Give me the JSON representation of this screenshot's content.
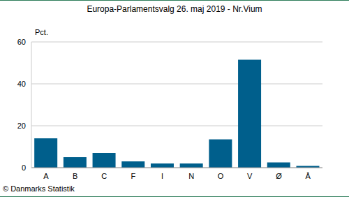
{
  "chart_data": {
    "type": "bar",
    "title": "Europa-Parlamentsvalg 26. maj 2019 - Nr.Vium",
    "ylabel": "Pct.",
    "annotation": "© Danmarks Statistik",
    "categories": [
      "A",
      "B",
      "C",
      "F",
      "I",
      "N",
      "O",
      "V",
      "Ø",
      "Å"
    ],
    "values": [
      14,
      5,
      7,
      3,
      2,
      2,
      13.5,
      51.5,
      2.5,
      0.8
    ],
    "color": "#005f8c",
    "ylim": [
      0,
      60
    ],
    "yticks": [
      0,
      20,
      40,
      60
    ],
    "grid": true
  }
}
